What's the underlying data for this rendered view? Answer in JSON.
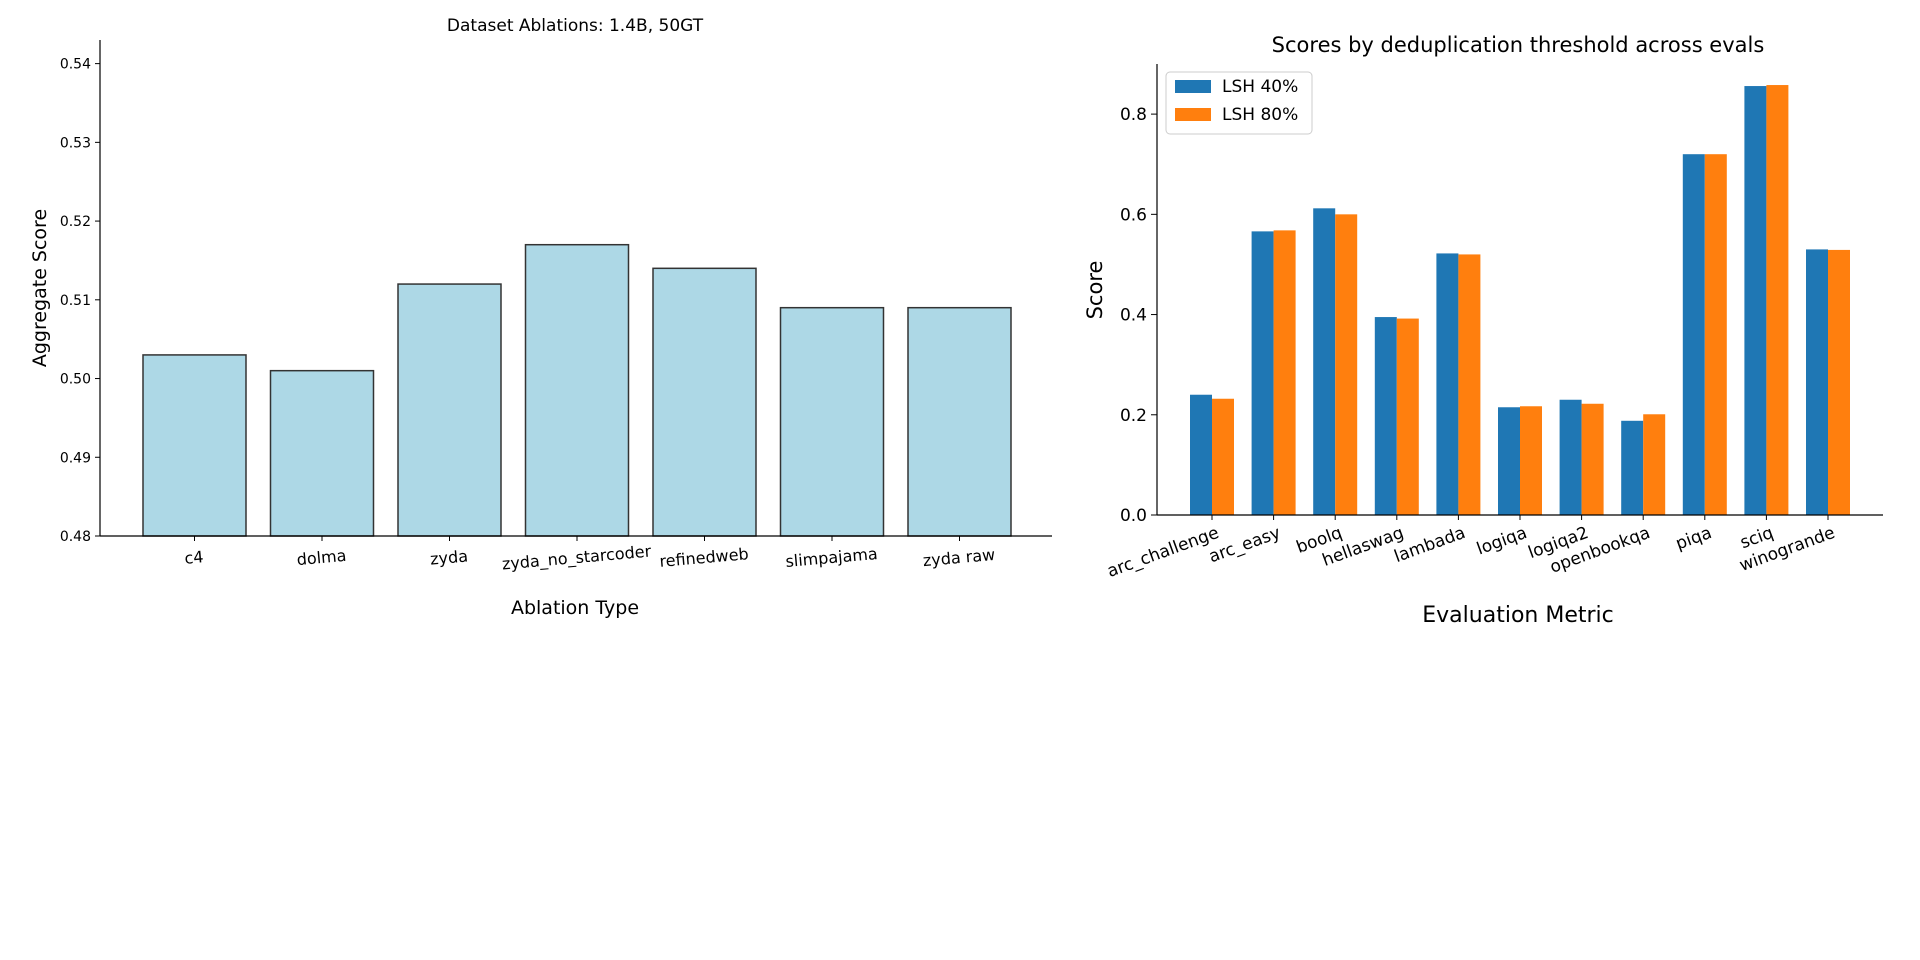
{
  "chart_data": [
    {
      "type": "bar",
      "title": "Dataset Ablations: 1.4B, 50GT",
      "xlabel": "Ablation Type",
      "ylabel": "Aggregate Score",
      "categories": [
        "c4",
        "dolma",
        "zyda",
        "zyda_no_starcoder",
        "refinedweb",
        "slimpajama",
        "zyda raw"
      ],
      "values": [
        0.503,
        0.501,
        0.512,
        0.517,
        0.514,
        0.509,
        0.509
      ],
      "ylim": [
        0.48,
        0.543
      ],
      "yticks": [
        "0.48",
        "0.49",
        "0.50",
        "0.51",
        "0.52",
        "0.53",
        "0.54"
      ],
      "bar_color": "#add8e6",
      "edge_color": "#333333",
      "grid": false,
      "tick_label_rotation_deg": -5
    },
    {
      "type": "bar",
      "title": "Scores by deduplication threshold across evals",
      "xlabel": "Evaluation Metric",
      "ylabel": "Score",
      "categories": [
        "arc_challenge",
        "arc_easy",
        "boolq",
        "hellaswag",
        "lambada",
        "logiqa",
        "logiqa2",
        "openbookqa",
        "piqa",
        "sciq",
        "winogrande"
      ],
      "series": [
        {
          "name": "LSH 40%",
          "color": "#1f77b4",
          "values": [
            0.24,
            0.566,
            0.612,
            0.395,
            0.522,
            0.215,
            0.23,
            0.188,
            0.72,
            0.856,
            0.53
          ]
        },
        {
          "name": "LSH 80%",
          "color": "#ff7f0e",
          "values": [
            0.232,
            0.568,
            0.6,
            0.392,
            0.52,
            0.217,
            0.222,
            0.201,
            0.72,
            0.858,
            0.529
          ]
        }
      ],
      "ylim": [
        0,
        0.9
      ],
      "yticks": [
        "0.0",
        "0.2",
        "0.4",
        "0.6",
        "0.8"
      ],
      "legend": "top-left",
      "grid": false,
      "tick_label_rotation_deg": -20
    }
  ]
}
